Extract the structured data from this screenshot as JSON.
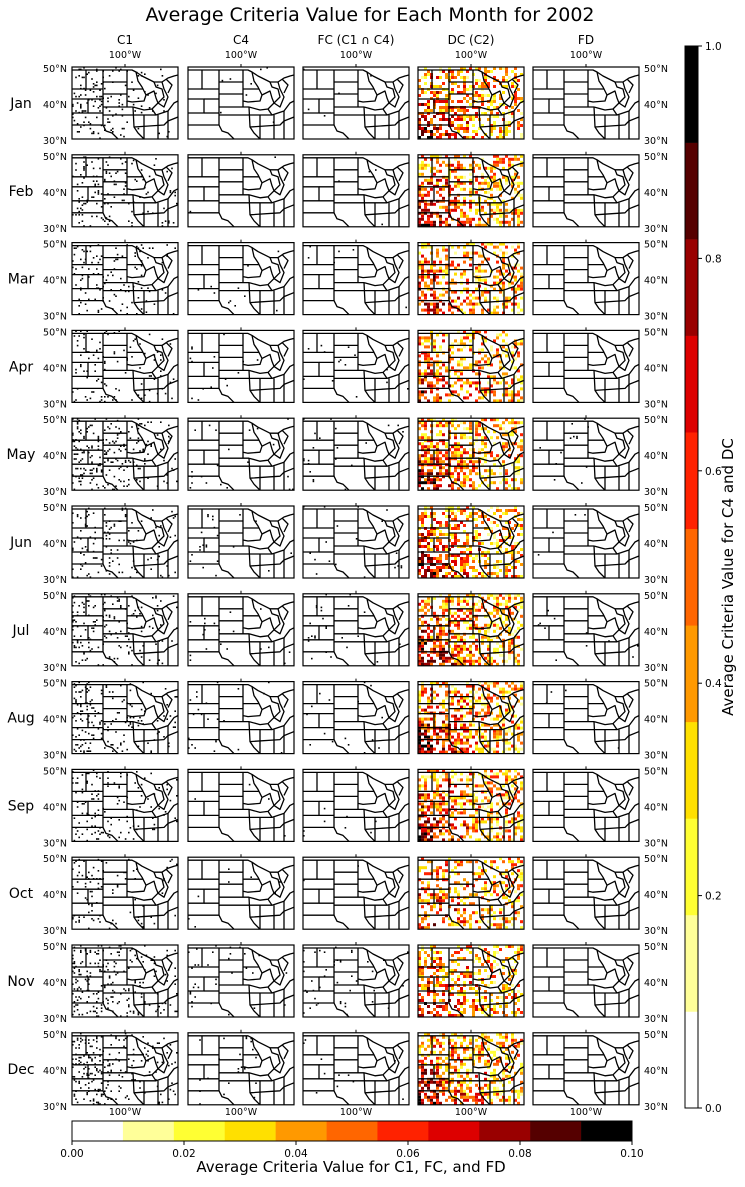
{
  "chart_data": {
    "type": "heatmap",
    "title": "Average Criteria Value for Each Month for 2002",
    "columns": [
      "C1",
      "C4",
      "FC (C1 ∩ C4)",
      "DC (C2)",
      "FD"
    ],
    "rows": [
      "Jan",
      "Feb",
      "Mar",
      "Apr",
      "May",
      "Jun",
      "Jul",
      "Aug",
      "Sep",
      "Oct",
      "Nov",
      "Dec"
    ],
    "lon_tick_label": "100°W",
    "lat_ticks": [
      "50°N",
      "40°N",
      "30°N"
    ],
    "right_colorbar": {
      "label": "Average Criteria Value for C4 and DC",
      "range": [
        0.0,
        1.0
      ],
      "tick_values": [
        0.0,
        0.2,
        0.4,
        0.6,
        0.8,
        1.0
      ],
      "tick_labels": [
        "0.0",
        "0.2",
        "0.4",
        "0.6",
        "0.8",
        "1.0"
      ],
      "levels": 11
    },
    "bottom_colorbar": {
      "label": "Average Criteria Value for C1, FC, and FD",
      "range": [
        0.0,
        0.1
      ],
      "tick_values": [
        0.0,
        0.02,
        0.04,
        0.06,
        0.08,
        0.1
      ],
      "tick_labels": [
        "0.00",
        "0.02",
        "0.04",
        "0.06",
        "0.08",
        "0.10"
      ],
      "levels": 11
    },
    "colormap": [
      "#ffffff",
      "#ffff99",
      "#ffff33",
      "#ffe000",
      "#ff9900",
      "#ff6600",
      "#ff2200",
      "#dd0000",
      "#990000",
      "#550000",
      "#000000"
    ],
    "panel_activity": [
      [
        0.35,
        0.02,
        0.02,
        0.8,
        0.0
      ],
      [
        0.35,
        0.01,
        0.01,
        0.85,
        0.0
      ],
      [
        0.3,
        0.02,
        0.02,
        0.7,
        0.0
      ],
      [
        0.3,
        0.04,
        0.04,
        0.7,
        0.0
      ],
      [
        0.55,
        0.06,
        0.06,
        0.85,
        0.03
      ],
      [
        0.35,
        0.05,
        0.05,
        0.85,
        0.02
      ],
      [
        0.4,
        0.06,
        0.06,
        0.9,
        0.02
      ],
      [
        0.4,
        0.05,
        0.05,
        0.9,
        0.02
      ],
      [
        0.3,
        0.02,
        0.02,
        0.8,
        0.0
      ],
      [
        0.25,
        0.01,
        0.01,
        0.6,
        0.0
      ],
      [
        0.6,
        0.1,
        0.1,
        0.75,
        0.0
      ],
      [
        0.55,
        0.05,
        0.05,
        0.9,
        0.0
      ]
    ]
  }
}
